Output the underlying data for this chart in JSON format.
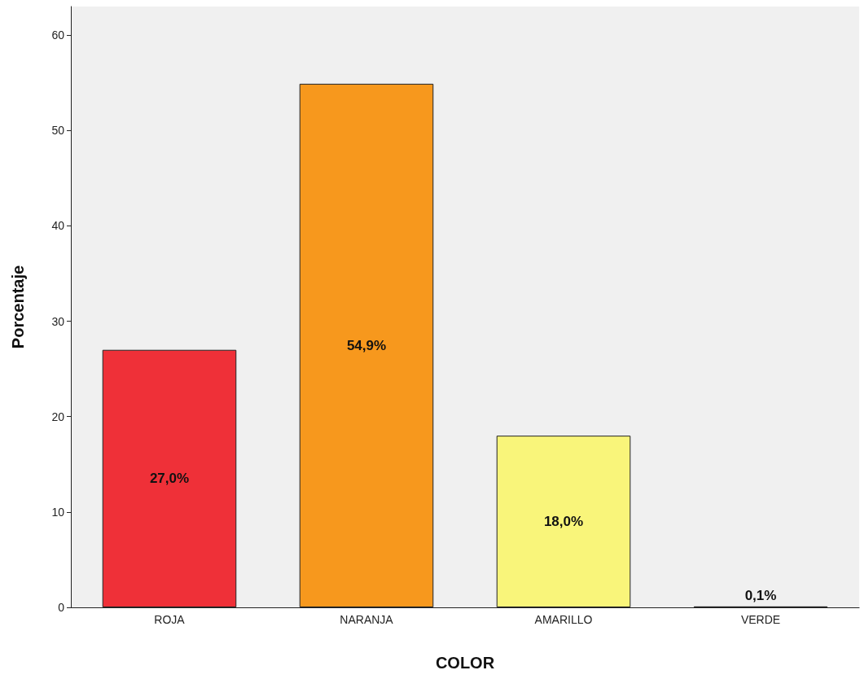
{
  "chart_data": {
    "type": "bar",
    "xlabel": "COLOR",
    "ylabel": "Porcentaje",
    "categories": [
      "ROJA",
      "NARANJA",
      "AMARILLO",
      "VERDE"
    ],
    "values": [
      27.0,
      54.9,
      18.0,
      0.1
    ],
    "value_labels": [
      "27,0%",
      "54,9%",
      "18,0%",
      "0,1%"
    ],
    "colors": [
      "#ef3038",
      "#f7981d",
      "#f9f57a",
      "#2e8b3a"
    ],
    "ylim": [
      0,
      63
    ],
    "yticks": [
      0,
      10,
      20,
      30,
      40,
      50,
      60
    ],
    "grid": false
  }
}
